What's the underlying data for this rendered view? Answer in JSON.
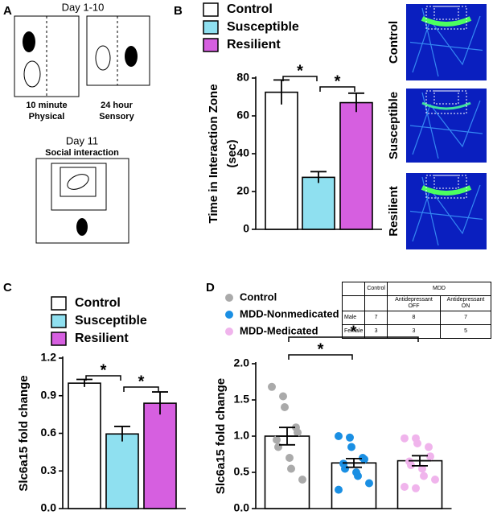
{
  "panel_letters": [
    "A",
    "B",
    "C",
    "D"
  ],
  "panel_a": {
    "phase1": "Day 1-10",
    "step1": [
      "10 minute",
      "Physical"
    ],
    "step2": [
      "24 hour",
      "Sensory"
    ],
    "phase2": "Day 11",
    "test": "Social interaction"
  },
  "heatmaps": [
    "Control",
    "Susceptible",
    "Resilient"
  ],
  "table": {
    "header": [
      "Control",
      "MDD"
    ],
    "subheader": [
      "Antidepressant OFF",
      "Antidepressant ON"
    ],
    "rows": [
      [
        "Male",
        "7",
        "8",
        "7"
      ],
      [
        "Female",
        "3",
        "3",
        "5"
      ]
    ]
  },
  "chart_data": [
    {
      "type": "bar",
      "ylabel": [
        "Time in Interaction Zone",
        "(sec)"
      ],
      "ylim": [
        0,
        80
      ],
      "yticks": [
        0,
        20,
        40,
        60,
        80
      ],
      "series": [
        {
          "name": "Control",
          "color": "#ffffff",
          "values": [
            72.5
          ],
          "errors": [
            6.5
          ]
        },
        {
          "name": "Susceptible",
          "color": "#8fe0f0",
          "values": [
            27.5
          ],
          "errors": [
            3
          ]
        },
        {
          "name": "Resilient",
          "color": "#d65fe0",
          "values": [
            67
          ],
          "errors": [
            5
          ]
        }
      ],
      "significance": [
        {
          "label": "*",
          "pair": [
            "Control",
            "Susceptible"
          ]
        },
        {
          "label": "*",
          "pair": [
            "Susceptible",
            "Resilient"
          ]
        }
      ]
    },
    {
      "type": "bar",
      "ylabel": [
        "Slc6a15 fold change"
      ],
      "ylim": [
        0,
        1.2
      ],
      "yticks": [
        {
          "value": 0,
          "label": "0.0"
        },
        0.3,
        0.6,
        0.9,
        1.2
      ],
      "series": [
        {
          "name": "Control",
          "color": "#ffffff",
          "values": [
            1.0
          ],
          "errors": [
            0.03
          ]
        },
        {
          "name": "Susceptible",
          "color": "#8fe0f0",
          "values": [
            0.595
          ],
          "errors": [
            0.06
          ]
        },
        {
          "name": "Resilient",
          "color": "#d65fe0",
          "values": [
            0.84
          ],
          "errors": [
            0.09
          ]
        }
      ],
      "significance": [
        {
          "label": "*",
          "pair": [
            "Control",
            "Susceptible"
          ]
        },
        {
          "label": "*",
          "pair": [
            "Susceptible",
            "Resilient"
          ]
        }
      ]
    },
    {
      "type": "bar_points",
      "ylabel": [
        "Slc6a15 fold change"
      ],
      "ylim": [
        0,
        2.0
      ],
      "yticks": [
        {
          "value": 0,
          "label": "0.0"
        },
        0.5,
        {
          "value": 1,
          "label": "1.0"
        },
        1.5,
        {
          "value": 2,
          "label": "2.0"
        }
      ],
      "bar_color": "#ffffff",
      "series": [
        {
          "name": "Control",
          "color": "#aaaaaa",
          "values": [
            1.0
          ],
          "errors": [
            0.12
          ],
          "points": [
            1.68,
            1.55,
            1.4,
            1.12,
            1.05,
            0.95,
            0.85,
            0.7,
            0.55,
            0.4
          ]
        },
        {
          "name": "MDD-Nonmedicated",
          "color": "#1a8fe3",
          "values": [
            0.63
          ],
          "errors": [
            0.06
          ],
          "points": [
            1.0,
            0.98,
            0.85,
            0.7,
            0.68,
            0.62,
            0.55,
            0.5,
            0.45,
            0.35,
            0.26
          ]
        },
        {
          "name": "MDD-Medicated",
          "color": "#f0b4ec",
          "values": [
            0.66
          ],
          "errors": [
            0.07
          ],
          "points": [
            0.97,
            0.97,
            0.9,
            0.85,
            0.72,
            0.65,
            0.6,
            0.55,
            0.45,
            0.4,
            0.3,
            0.28
          ]
        }
      ],
      "significance": [
        {
          "label": "*",
          "pair": [
            "Control",
            "MDD-Nonmedicated"
          ]
        },
        {
          "label": "*",
          "pair": [
            "Control",
            "MDD-Medicated"
          ]
        }
      ]
    }
  ]
}
